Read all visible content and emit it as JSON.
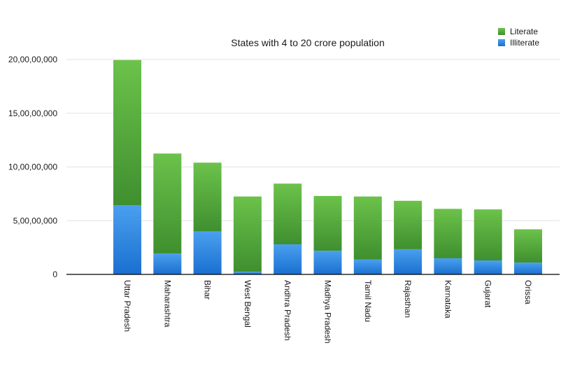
{
  "chart_data": {
    "type": "bar",
    "stacked": true,
    "title": "States with 4 to 20 crore population",
    "xlabel": "",
    "ylabel": "",
    "ylim": [
      0,
      200000000
    ],
    "yticks": [
      0,
      50000000,
      100000000,
      150000000,
      200000000
    ],
    "ytick_labels": [
      "0",
      "5,00,00,000",
      "10,00,00,000",
      "15,00,00,000",
      "20,00,00,000"
    ],
    "grid": true,
    "legend_position": "top-right",
    "categories": [
      "Uttar Pradesh",
      "Maharashtra",
      "Bihar",
      "West Bengal",
      "Andhra Pradesh",
      "Madhya Pradesh",
      "Tamil Nadu",
      "Rajasthan",
      "Karnataka",
      "Gujarat",
      "Orissa"
    ],
    "series": [
      {
        "name": "Illiterate",
        "color": "#2f86e0",
        "values": [
          64500000,
          19500000,
          40000000,
          2500000,
          28000000,
          22000000,
          14000000,
          23500000,
          15000000,
          13000000,
          11000000
        ]
      },
      {
        "name": "Literate",
        "color": "#4ca83c",
        "values": [
          135000000,
          93000000,
          64000000,
          70000000,
          56500000,
          51000000,
          58500000,
          45000000,
          46000000,
          47500000,
          31000000
        ]
      }
    ]
  }
}
